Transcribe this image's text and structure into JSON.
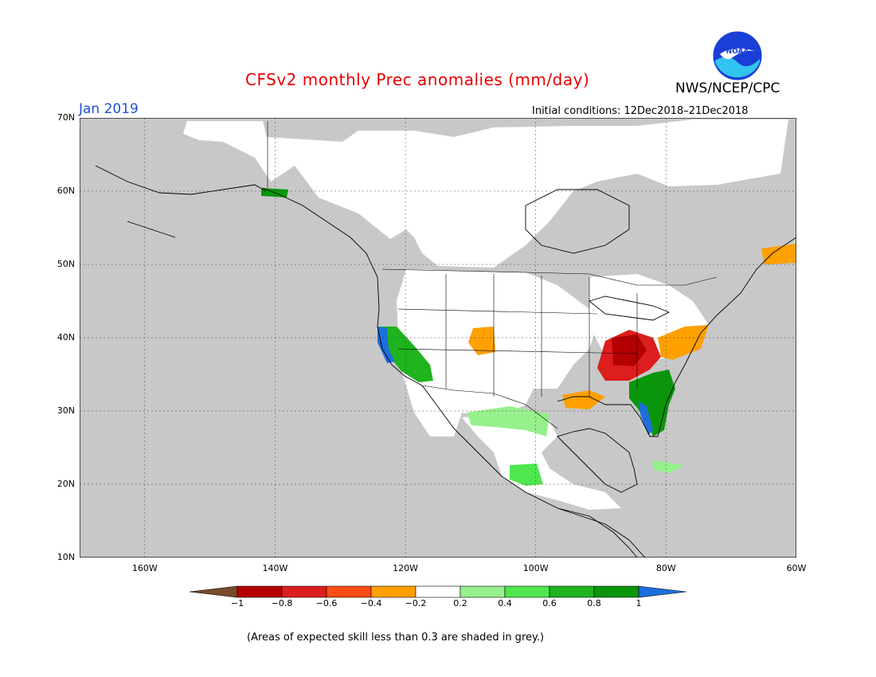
{
  "title": "CFSv2 monthly Prec anomalies (mm/day)",
  "agency": "NWS/NCEP/CPC",
  "logo_text": "NOAA",
  "period": "Jan 2019",
  "initial_conditions": "Initial conditions: 12Dec2018–21Dec2018",
  "footnote": "(Areas of expected skill less than 0.3 are shaded in grey.)",
  "map": {
    "lon_range": [
      -170,
      -60
    ],
    "lat_range": [
      10,
      70
    ],
    "lat_ticks": [
      {
        "value": 70,
        "label": "70N"
      },
      {
        "value": 60,
        "label": "60N"
      },
      {
        "value": 50,
        "label": "50N"
      },
      {
        "value": 40,
        "label": "40N"
      },
      {
        "value": 30,
        "label": "30N"
      },
      {
        "value": 20,
        "label": "20N"
      },
      {
        "value": 10,
        "label": "10N"
      }
    ],
    "lon_ticks": [
      {
        "value": -160,
        "label": "160W"
      },
      {
        "value": -140,
        "label": "140W"
      },
      {
        "value": -120,
        "label": "120W"
      },
      {
        "value": -100,
        "label": "100W"
      },
      {
        "value": -80,
        "label": "80W"
      },
      {
        "value": -60,
        "label": "60W"
      }
    ],
    "colors": {
      "low_skill": "#c8c8c8",
      "neutral": "#ffffff",
      "outline": "#000000"
    }
  },
  "colorbar": {
    "bins": [
      {
        "color": "#7a4a2a"
      },
      {
        "color": "#b40000"
      },
      {
        "color": "#dc1e1e"
      },
      {
        "color": "#ff4b14"
      },
      {
        "color": "#ffa000"
      },
      {
        "color": "#ffffff"
      },
      {
        "color": "#96f08c"
      },
      {
        "color": "#50e650"
      },
      {
        "color": "#1eb41e"
      },
      {
        "color": "#0a960a"
      },
      {
        "color": "#1e6edc"
      }
    ],
    "ticks": [
      "−1",
      "−0.8",
      "−0.6",
      "−0.4",
      "−0.2",
      "0.2",
      "0.4",
      "0.6",
      "0.8",
      "1"
    ]
  },
  "anomaly_regions": [
    {
      "name": "california-coast-wet",
      "category": "0.8",
      "lon": [
        -124,
        -118
      ],
      "lat": [
        34,
        41
      ]
    },
    {
      "name": "southeast-us-wet",
      "category": "0.8",
      "lon": [
        -85,
        -81
      ],
      "lat": [
        26,
        33
      ]
    },
    {
      "name": "ohio-valley-dry",
      "category": "-0.8",
      "lon": [
        -91,
        -82
      ],
      "lat": [
        34,
        40
      ]
    },
    {
      "name": "mid-atlantic-dry",
      "category": "-0.4",
      "lon": [
        -84,
        -75
      ],
      "lat": [
        36,
        41
      ]
    },
    {
      "name": "mexico-wet",
      "category": "0.4",
      "lon": [
        -110,
        -96
      ],
      "lat": [
        26,
        31
      ]
    }
  ]
}
